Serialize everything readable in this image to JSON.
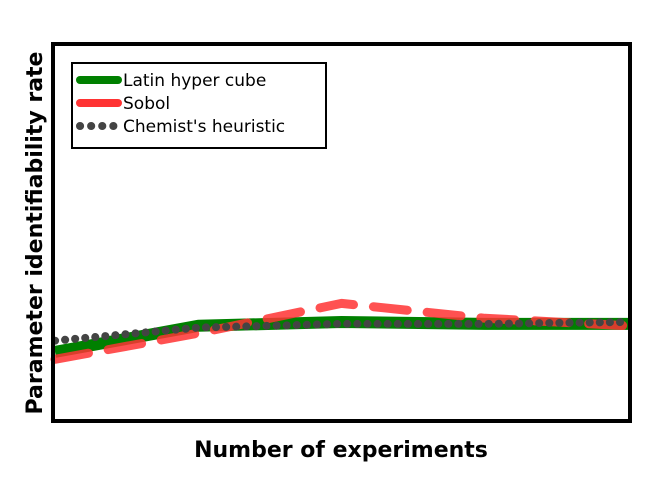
{
  "chart_data": {
    "type": "line",
    "title": "",
    "xlabel": "Number  of  experiments",
    "ylabel": "Parameter  identifiability  rate",
    "xlim": [
      0,
      4
    ],
    "ylim": [
      0,
      1
    ],
    "grid": false,
    "legend_position": "top-left",
    "x_ticks_shown": false,
    "y_ticks_shown": false,
    "series": [
      {
        "name": "Latin hyper cube",
        "color": "#008000",
        "style": "solid",
        "x": [
          0,
          1,
          2,
          3,
          4
        ],
        "y": [
          0.18,
          0.25,
          0.26,
          0.255,
          0.255
        ]
      },
      {
        "name": "Sobol",
        "color": "#ff3333",
        "style": "dashed",
        "x": [
          0,
          1,
          2,
          3,
          4
        ],
        "y": [
          0.16,
          0.23,
          0.31,
          0.27,
          0.25
        ]
      },
      {
        "name": "Chemist's heuristic",
        "color": "#444444",
        "style": "dotted",
        "x": [
          0,
          1,
          2,
          3,
          4
        ],
        "y": [
          0.21,
          0.245,
          0.255,
          0.255,
          0.26
        ]
      }
    ]
  }
}
